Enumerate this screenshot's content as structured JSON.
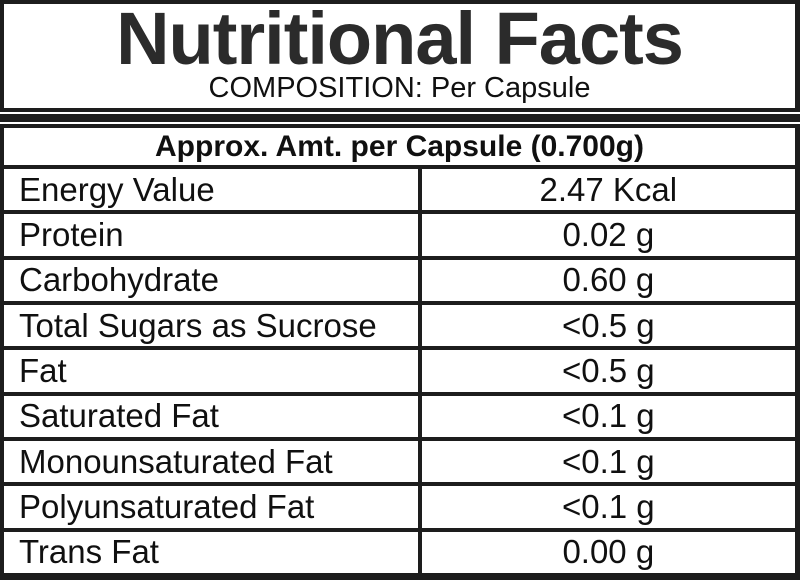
{
  "label": {
    "title": "Nutritional Facts",
    "subtitle": "COMPOSITION: Per Capsule",
    "table": {
      "header": "Approx. Amt. per Capsule (0.700g)",
      "rows": [
        {
          "label": "Energy Value",
          "value": "2.47 Kcal"
        },
        {
          "label": "Protein",
          "value": "0.02 g"
        },
        {
          "label": "Carbohydrate",
          "value": "0.60 g"
        },
        {
          "label": "Total Sugars as Sucrose",
          "value": "<0.5 g"
        },
        {
          "label": "Fat",
          "value": "<0.5 g"
        },
        {
          "label": "Saturated Fat",
          "value": "<0.1 g"
        },
        {
          "label": "Monounsaturated Fat",
          "value": "<0.1 g"
        },
        {
          "label": "Polyunsaturated Fat",
          "value": "<0.1 g"
        },
        {
          "label": "Trans Fat",
          "value": "0.00 g"
        }
      ]
    },
    "colors": {
      "border": "#1d1d1d",
      "title": "#2b2b2b",
      "text": "#101010",
      "background": "#ffffff"
    }
  }
}
